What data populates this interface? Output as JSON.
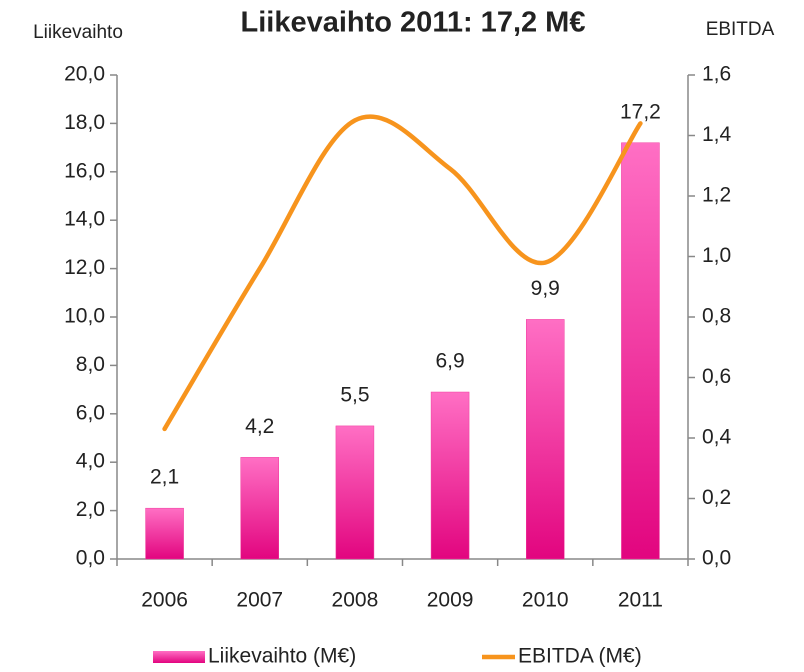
{
  "chart_data": {
    "type": "bar-line",
    "title": "Liikevaihto 2011: 17,2 M€",
    "y_axis_label": "Liikevaihto",
    "y2_axis_label": "EBITDA",
    "categories": [
      "2006",
      "2007",
      "2008",
      "2009",
      "2010",
      "2011"
    ],
    "series": [
      {
        "name": "Liikevaihto (M€)",
        "type": "bar",
        "color": "#f0399e",
        "values": [
          2.1,
          4.2,
          5.5,
          6.9,
          9.9,
          17.2
        ],
        "value_labels": [
          "2,1",
          "4,2",
          "5,5",
          "6,9",
          "9,9",
          "17,2"
        ]
      },
      {
        "name": "EBITDA (M€)",
        "type": "line",
        "axis": "y2",
        "color": "#f7941d",
        "values": [
          0.43,
          0.96,
          1.45,
          1.29,
          0.98,
          1.44
        ]
      }
    ],
    "ylim": [
      0,
      20
    ],
    "yticks": [
      {
        "value": 0,
        "label": "0,0"
      },
      {
        "value": 2,
        "label": "2,0"
      },
      {
        "value": 4,
        "label": "4,0"
      },
      {
        "value": 6,
        "label": "6,0"
      },
      {
        "value": 8,
        "label": "8,0"
      },
      {
        "value": 10,
        "label": "10,0"
      },
      {
        "value": 12,
        "label": "12,0"
      },
      {
        "value": 14,
        "label": "14,0"
      },
      {
        "value": 16,
        "label": "16,0"
      },
      {
        "value": 18,
        "label": "18,0"
      },
      {
        "value": 20,
        "label": "20,0"
      }
    ],
    "y2lim": [
      0,
      1.6
    ],
    "y2ticks": [
      {
        "value": 0,
        "label": "0,0"
      },
      {
        "value": 0.2,
        "label": "0,2"
      },
      {
        "value": 0.4,
        "label": "0,4"
      },
      {
        "value": 0.6,
        "label": "0,6"
      },
      {
        "value": 0.8,
        "label": "0,8"
      },
      {
        "value": 1.0,
        "label": "1,0"
      },
      {
        "value": 1.2,
        "label": "1,2"
      },
      {
        "value": 1.4,
        "label": "1,4"
      },
      {
        "value": 1.6,
        "label": "1,6"
      }
    ],
    "legend": "bottom"
  }
}
